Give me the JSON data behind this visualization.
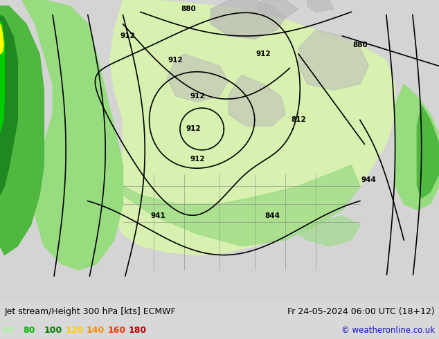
{
  "title_left": "Jet stream/Height 300 hPa [kts] ECMWF",
  "title_right": "Fr 24-05-2024 06:00 UTC (18+12)",
  "copyright": "© weatheronline.co.uk",
  "legend_values": [
    60,
    80,
    100,
    120,
    140,
    160,
    180
  ],
  "legend_colors": [
    "#a8f0a8",
    "#00bb00",
    "#007700",
    "#ffcc00",
    "#ff8800",
    "#ff3300",
    "#bb0000"
  ],
  "bg_color": "#d8d8d8",
  "land_color": "#c8c8c8",
  "sea_color": "#d8d8d8",
  "green_vlight": "#e0f5d0",
  "green_light": "#b8e8a0",
  "green_mid": "#70c850",
  "green_dark": "#208820",
  "green_bright": "#00cc00",
  "yellow_color": "#ffff00",
  "bottom_strip_color": "#e0e0e0",
  "fig_width": 6.34,
  "fig_height": 4.9,
  "dpi": 100,
  "label_fontsize": 9.0,
  "legend_fontsize": 9.0,
  "copyright_fontsize": 8.5
}
